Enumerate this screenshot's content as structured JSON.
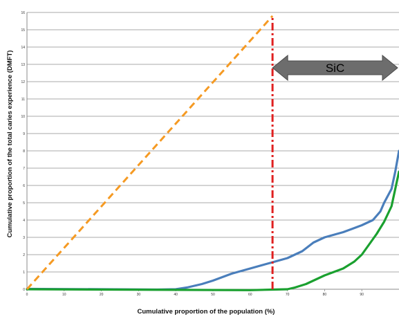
{
  "chart_data": {
    "type": "line",
    "title": "",
    "xlabel": "Cumulative proportion of the population (%)",
    "ylabel": "Cumulative proportion of the total caries experience (DMFT)",
    "xlim": [
      0,
      100
    ],
    "ylim": [
      0,
      16
    ],
    "x_ticks": [
      "0",
      "10",
      "20",
      "30",
      "40",
      "50",
      "60",
      "70",
      "80",
      "90"
    ],
    "y_ticks": [
      "0",
      "1",
      "2",
      "3",
      "4",
      "5",
      "6",
      "7",
      "8",
      "9",
      "10",
      "11",
      "12",
      "13",
      "14",
      "15",
      "16"
    ],
    "grid": "horizontal",
    "legend": "none",
    "series": [
      {
        "color": "#4a7ebb",
        "style": "solid",
        "points": [
          [
            0,
            0.02
          ],
          [
            20,
            0.0
          ],
          [
            35,
            -0.02
          ],
          [
            40,
            0.0
          ],
          [
            43,
            0.1
          ],
          [
            47,
            0.3
          ],
          [
            50,
            0.5
          ],
          [
            55,
            0.9
          ],
          [
            60,
            1.2
          ],
          [
            65,
            1.5
          ],
          [
            70,
            1.8
          ],
          [
            74,
            2.2
          ],
          [
            77,
            2.7
          ],
          [
            80,
            3.0
          ],
          [
            85,
            3.3
          ],
          [
            90,
            3.7
          ],
          [
            93,
            4.0
          ],
          [
            95,
            4.5
          ],
          [
            96,
            5.0
          ],
          [
            98,
            5.8
          ],
          [
            99,
            6.8
          ],
          [
            100,
            8.0
          ]
        ]
      },
      {
        "color": "#1aa02f",
        "style": "solid",
        "points": [
          [
            0,
            0.0
          ],
          [
            60,
            -0.05
          ],
          [
            66,
            -0.02
          ],
          [
            70,
            0.0
          ],
          [
            72,
            0.1
          ],
          [
            75,
            0.3
          ],
          [
            80,
            0.8
          ],
          [
            85,
            1.2
          ],
          [
            88,
            1.6
          ],
          [
            90,
            2.0
          ],
          [
            92,
            2.6
          ],
          [
            94,
            3.2
          ],
          [
            96,
            3.9
          ],
          [
            98,
            4.8
          ],
          [
            99,
            5.8
          ],
          [
            100,
            6.8
          ]
        ]
      },
      {
        "color": "#f59a23",
        "style": "dashed",
        "points": [
          [
            0,
            0
          ],
          [
            66,
            15.8
          ]
        ]
      },
      {
        "color": "#e02020",
        "style": "dash-dot",
        "points": [
          [
            66,
            0
          ],
          [
            66,
            15.8
          ]
        ]
      }
    ],
    "annotations": [
      {
        "text": "SiC",
        "type": "double-arrow",
        "x_from": 66,
        "x_to": 100,
        "y": 12.8,
        "color": "#6d6d6d"
      }
    ]
  }
}
